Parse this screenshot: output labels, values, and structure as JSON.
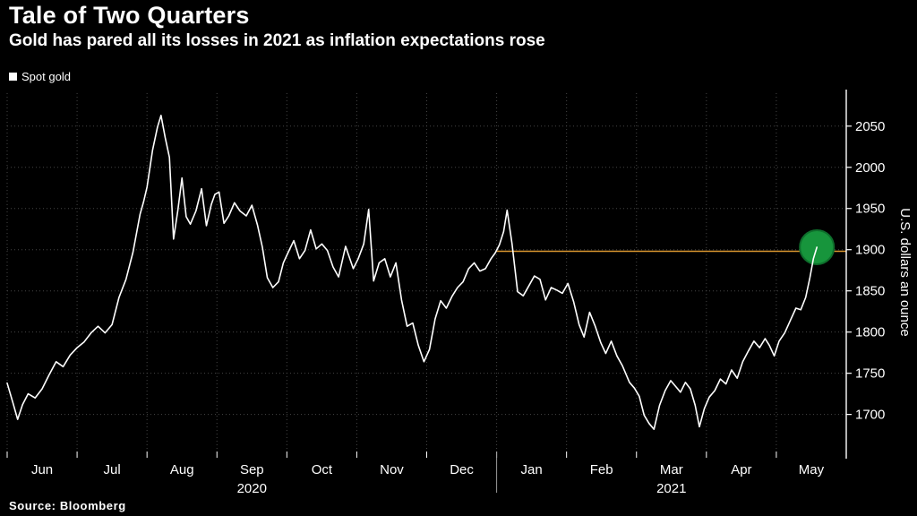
{
  "header": {
    "title": "Tale of Two Quarters",
    "subtitle": "Gold has pared all its losses in 2021 as inflation expectations rose"
  },
  "legend": {
    "label": "Spot gold",
    "swatch_color": "#ffffff"
  },
  "source": {
    "label": "Source: Bloomberg"
  },
  "chart_data": {
    "type": "line",
    "title": "Tale of Two Quarters",
    "subtitle": "Gold has pared all its losses in 2021 as inflation expectations rose",
    "ylabel": "U.S. dollars an ounce",
    "xlabel": "",
    "x_unit": "months since 2020-06-01",
    "legend_position": "top-left",
    "grid": "dotted",
    "ylim": [
      1655,
      2090
    ],
    "xlim": [
      0,
      12
    ],
    "y_ticks": [
      1700,
      1750,
      1800,
      1850,
      1900,
      1950,
      2000,
      2050
    ],
    "x_ticks": {
      "positions": [
        0.5,
        1.5,
        2.5,
        3.5,
        4.5,
        5.5,
        6.5,
        7.5,
        8.5,
        9.5,
        10.5,
        11.5
      ],
      "labels": [
        "Jun",
        "Jul",
        "Aug",
        "Sep",
        "Oct",
        "Nov",
        "Dec",
        "Jan",
        "Feb",
        "Mar",
        "Apr",
        "May"
      ]
    },
    "x_gridlines": [
      0,
      1,
      2,
      3,
      4,
      5,
      6,
      7,
      8,
      9,
      10,
      11,
      12
    ],
    "year_labels": [
      {
        "label": "2020",
        "x": 3.5
      },
      {
        "label": "2021",
        "x": 9.5
      }
    ],
    "year_divider_x": 7,
    "colors": {
      "background": "#000000",
      "line": "#ffffff",
      "grid": "#464646",
      "reference": "#d9952e",
      "highlight": "#17953c"
    },
    "reference_line": {
      "value": 1898,
      "from_x": 7,
      "to_x": 12,
      "color": "#d9952e"
    },
    "highlight_marker": {
      "x": 11.58,
      "value": 1903,
      "radius": 19,
      "fill": "#17953c",
      "stroke": "#0e6f2c"
    },
    "series": [
      {
        "name": "Spot gold",
        "color": "#ffffff",
        "points": [
          [
            0.0,
            1738
          ],
          [
            0.08,
            1715
          ],
          [
            0.15,
            1694
          ],
          [
            0.22,
            1712
          ],
          [
            0.3,
            1725
          ],
          [
            0.4,
            1720
          ],
          [
            0.5,
            1731
          ],
          [
            0.6,
            1748
          ],
          [
            0.7,
            1764
          ],
          [
            0.8,
            1758
          ],
          [
            0.9,
            1772
          ],
          [
            1.0,
            1781
          ],
          [
            1.1,
            1788
          ],
          [
            1.2,
            1799
          ],
          [
            1.3,
            1807
          ],
          [
            1.4,
            1799
          ],
          [
            1.5,
            1809
          ],
          [
            1.6,
            1842
          ],
          [
            1.7,
            1864
          ],
          [
            1.8,
            1897
          ],
          [
            1.9,
            1943
          ],
          [
            1.95,
            1958
          ],
          [
            2.0,
            1976
          ],
          [
            2.08,
            2021
          ],
          [
            2.15,
            2049
          ],
          [
            2.2,
            2063
          ],
          [
            2.26,
            2036
          ],
          [
            2.32,
            2012
          ],
          [
            2.38,
            1913
          ],
          [
            2.44,
            1947
          ],
          [
            2.5,
            1987
          ],
          [
            2.56,
            1940
          ],
          [
            2.62,
            1931
          ],
          [
            2.7,
            1947
          ],
          [
            2.78,
            1974
          ],
          [
            2.85,
            1929
          ],
          [
            2.92,
            1955
          ],
          [
            2.97,
            1967
          ],
          [
            3.03,
            1970
          ],
          [
            3.1,
            1932
          ],
          [
            3.17,
            1941
          ],
          [
            3.25,
            1957
          ],
          [
            3.33,
            1947
          ],
          [
            3.42,
            1941
          ],
          [
            3.5,
            1954
          ],
          [
            3.58,
            1930
          ],
          [
            3.65,
            1903
          ],
          [
            3.72,
            1866
          ],
          [
            3.8,
            1854
          ],
          [
            3.88,
            1861
          ],
          [
            3.95,
            1884
          ],
          [
            4.02,
            1897
          ],
          [
            4.1,
            1911
          ],
          [
            4.18,
            1889
          ],
          [
            4.26,
            1899
          ],
          [
            4.34,
            1924
          ],
          [
            4.42,
            1901
          ],
          [
            4.5,
            1907
          ],
          [
            4.58,
            1899
          ],
          [
            4.66,
            1879
          ],
          [
            4.74,
            1867
          ],
          [
            4.84,
            1904
          ],
          [
            4.95,
            1877
          ],
          [
            5.02,
            1889
          ],
          [
            5.1,
            1907
          ],
          [
            5.17,
            1949
          ],
          [
            5.24,
            1862
          ],
          [
            5.32,
            1884
          ],
          [
            5.4,
            1889
          ],
          [
            5.48,
            1867
          ],
          [
            5.56,
            1884
          ],
          [
            5.64,
            1839
          ],
          [
            5.72,
            1807
          ],
          [
            5.8,
            1811
          ],
          [
            5.88,
            1784
          ],
          [
            5.96,
            1764
          ],
          [
            6.04,
            1779
          ],
          [
            6.12,
            1816
          ],
          [
            6.2,
            1838
          ],
          [
            6.28,
            1829
          ],
          [
            6.36,
            1843
          ],
          [
            6.44,
            1854
          ],
          [
            6.52,
            1861
          ],
          [
            6.6,
            1877
          ],
          [
            6.68,
            1884
          ],
          [
            6.76,
            1874
          ],
          [
            6.84,
            1877
          ],
          [
            6.92,
            1889
          ],
          [
            6.98,
            1896
          ],
          [
            7.04,
            1906
          ],
          [
            7.1,
            1922
          ],
          [
            7.15,
            1948
          ],
          [
            7.22,
            1907
          ],
          [
            7.3,
            1849
          ],
          [
            7.38,
            1844
          ],
          [
            7.46,
            1856
          ],
          [
            7.54,
            1868
          ],
          [
            7.62,
            1864
          ],
          [
            7.7,
            1839
          ],
          [
            7.78,
            1854
          ],
          [
            7.86,
            1851
          ],
          [
            7.94,
            1847
          ],
          [
            8.02,
            1859
          ],
          [
            8.1,
            1837
          ],
          [
            8.18,
            1809
          ],
          [
            8.25,
            1794
          ],
          [
            8.33,
            1824
          ],
          [
            8.41,
            1807
          ],
          [
            8.49,
            1787
          ],
          [
            8.56,
            1774
          ],
          [
            8.64,
            1789
          ],
          [
            8.72,
            1771
          ],
          [
            8.8,
            1759
          ],
          [
            8.9,
            1739
          ],
          [
            8.97,
            1732
          ],
          [
            9.04,
            1722
          ],
          [
            9.11,
            1699
          ],
          [
            9.18,
            1689
          ],
          [
            9.25,
            1682
          ],
          [
            9.33,
            1711
          ],
          [
            9.41,
            1729
          ],
          [
            9.49,
            1741
          ],
          [
            9.56,
            1734
          ],
          [
            9.63,
            1727
          ],
          [
            9.7,
            1739
          ],
          [
            9.77,
            1731
          ],
          [
            9.84,
            1711
          ],
          [
            9.9,
            1685
          ],
          [
            9.97,
            1707
          ],
          [
            10.04,
            1721
          ],
          [
            10.12,
            1729
          ],
          [
            10.2,
            1743
          ],
          [
            10.28,
            1737
          ],
          [
            10.36,
            1754
          ],
          [
            10.44,
            1744
          ],
          [
            10.52,
            1764
          ],
          [
            10.6,
            1777
          ],
          [
            10.68,
            1789
          ],
          [
            10.76,
            1781
          ],
          [
            10.84,
            1792
          ],
          [
            10.9,
            1784
          ],
          [
            10.97,
            1771
          ],
          [
            11.04,
            1789
          ],
          [
            11.12,
            1799
          ],
          [
            11.2,
            1814
          ],
          [
            11.28,
            1829
          ],
          [
            11.35,
            1827
          ],
          [
            11.42,
            1842
          ],
          [
            11.48,
            1866
          ],
          [
            11.53,
            1889
          ],
          [
            11.58,
            1903
          ]
        ]
      }
    ]
  }
}
